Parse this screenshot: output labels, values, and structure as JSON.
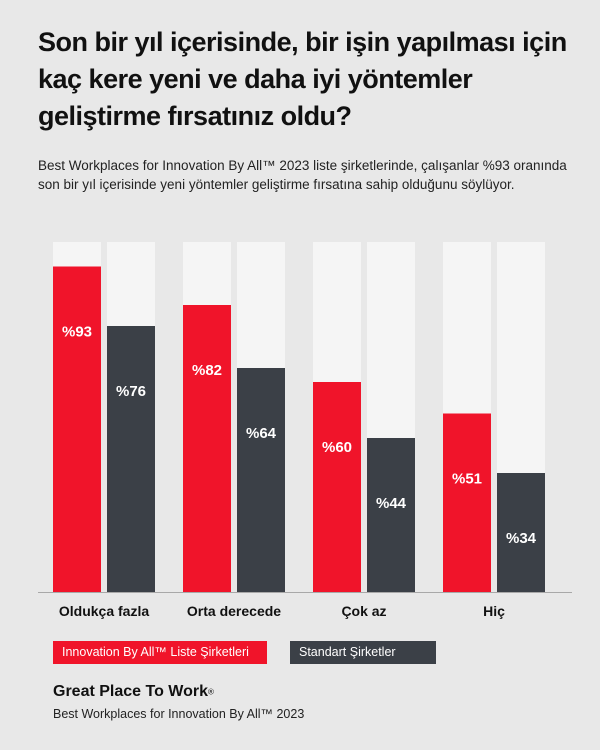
{
  "header": {
    "title": "Son bir yıl içerisinde, bir işin yapılması için kaç kere yeni ve daha iyi yöntemler geliştirme fırsatınız oldu?",
    "subtitle": "Best Workplaces for Innovation By All™ 2023 liste şirketlerinde, çalışanlar %93 oranında son bir yıl içerisinde yeni yöntemler geliştirme fırsatına sahip olduğunu söylüyor."
  },
  "chart_data": {
    "type": "bar",
    "categories": [
      "Oldukça fazla",
      "Orta derecede",
      "Çok az",
      "Hiç"
    ],
    "series": [
      {
        "name": "Innovation By All™ Liste Şirketleri",
        "values": [
          93,
          82,
          60,
          51
        ],
        "labels": [
          "%93",
          "%82",
          "%60",
          "%51"
        ],
        "color": "#f0142a"
      },
      {
        "name": "Standart Şirketler",
        "values": [
          76,
          64,
          44,
          34
        ],
        "labels": [
          "%76",
          "%64",
          "%44",
          "%34"
        ],
        "color": "#3b4047"
      }
    ],
    "ylim": [
      0,
      100
    ],
    "grid": false,
    "legend_position": "bottom-left",
    "track_color": "#f5f5f5",
    "label_color": "#ffffff"
  },
  "footer": {
    "brand": "Great Place To Work",
    "brand_mark": "®",
    "subtitle": "Best Workplaces for Innovation By All™ 2023"
  }
}
